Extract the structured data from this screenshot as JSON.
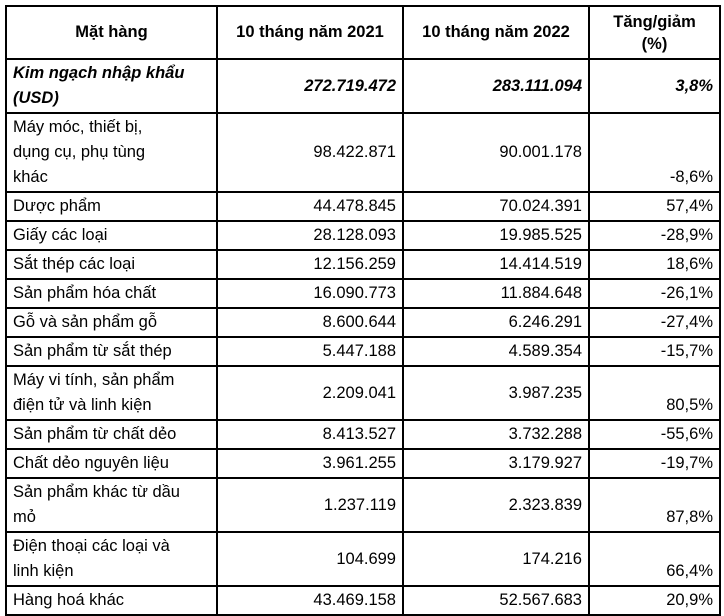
{
  "table": {
    "headers": [
      "Mặt hàng",
      "10 tháng năm 2021",
      "10 tháng năm 2022",
      "Tăng/giảm\n(%)"
    ],
    "total": {
      "name": "Kim ngạch nhập khẩu\n(USD)",
      "y2021": "272.719.472",
      "y2022": "283.111.094",
      "change": "3,8%"
    },
    "rows": [
      {
        "name": "Máy móc, thiết bị,\ndụng cụ, phụ tùng\nkhác",
        "y2021": "98.422.871",
        "y2022": "90.001.178",
        "change": "-8,6%"
      },
      {
        "name": "Dược phẩm",
        "y2021": "44.478.845",
        "y2022": "70.024.391",
        "change": "57,4%"
      },
      {
        "name": "Giấy các loại",
        "y2021": "28.128.093",
        "y2022": "19.985.525",
        "change": "-28,9%"
      },
      {
        "name": "Sắt thép các loại",
        "y2021": "12.156.259",
        "y2022": "14.414.519",
        "change": "18,6%"
      },
      {
        "name": "Sản phẩm hóa chất",
        "y2021": "16.090.773",
        "y2022": "11.884.648",
        "change": "-26,1%"
      },
      {
        "name": "Gỗ và sản phẩm gỗ",
        "y2021": "8.600.644",
        "y2022": "6.246.291",
        "change": "-27,4%"
      },
      {
        "name": "Sản phẩm từ sắt thép",
        "y2021": "5.447.188",
        "y2022": "4.589.354",
        "change": "-15,7%"
      },
      {
        "name": "Máy vi tính, sản phẩm\nđiện tử và linh kiện",
        "y2021": "2.209.041",
        "y2022": "3.987.235",
        "change": "80,5%"
      },
      {
        "name": "Sản phẩm từ chất dẻo",
        "y2021": "8.413.527",
        "y2022": "3.732.288",
        "change": "-55,6%"
      },
      {
        "name": "Chất dẻo nguyên liệu",
        "y2021": "3.961.255",
        "y2022": "3.179.927",
        "change": "-19,7%"
      },
      {
        "name": "Sản phẩm khác từ dầu\nmỏ",
        "y2021": "1.237.119",
        "y2022": "2.323.839",
        "change": "87,8%"
      },
      {
        "name": "Điện thoại các loại và\nlinh kiện",
        "y2021": "104.699",
        "y2022": "174.216",
        "change": "66,4%"
      },
      {
        "name": "Hàng hoá khác",
        "y2021": "43.469.158",
        "y2022": "52.567.683",
        "change": "20,9%"
      }
    ]
  }
}
